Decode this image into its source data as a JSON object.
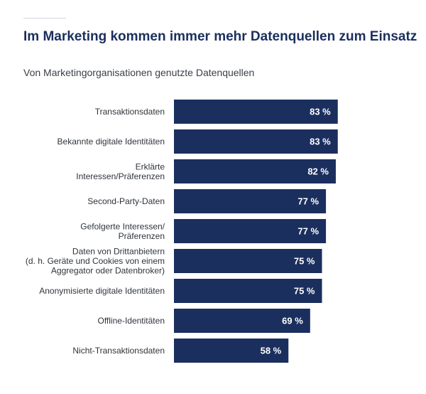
{
  "header": {
    "title": "Im Marketing kommen immer mehr Datenquellen zum Einsatz",
    "subtitle": "Von Marketingorganisationen genutzte Datenquellen"
  },
  "colors": {
    "bar": "#1b2f5e",
    "bar_label": "#ffffff",
    "category_label": "#2f343b",
    "title": "#1b2f5e"
  },
  "chart_data": {
    "type": "bar",
    "orientation": "horizontal",
    "title": "Im Marketing kommen immer mehr Datenquellen zum Einsatz",
    "subtitle": "Von Marketingorganisationen genutzte Datenquellen",
    "categories": [
      [
        "Transaktionsdaten"
      ],
      [
        "Bekannte digitale Identitäten"
      ],
      [
        "Erklärte",
        "Interessen/Präferenzen"
      ],
      [
        "Second-Party-Daten"
      ],
      [
        "Gefolgerte Interessen/",
        "Präferenzen"
      ],
      [
        "Daten von Drittanbietern",
        "(d. h. Geräte und Cookies von einem",
        "Aggregator oder Datenbroker)"
      ],
      [
        "Anonymisierte digitale Identitäten"
      ],
      [
        "Offline-Identitäten"
      ],
      [
        "Nicht-Transaktionsdaten"
      ]
    ],
    "values": [
      83,
      83,
      82,
      77,
      77,
      75,
      75,
      69,
      58
    ],
    "value_labels": [
      "83 %",
      "83 %",
      "82 %",
      "77 %",
      "77 %",
      "75 %",
      "75 %",
      "69 %",
      "58 %"
    ],
    "unit": "%",
    "xlim": [
      0,
      100
    ],
    "grid": false,
    "legend": "none"
  }
}
